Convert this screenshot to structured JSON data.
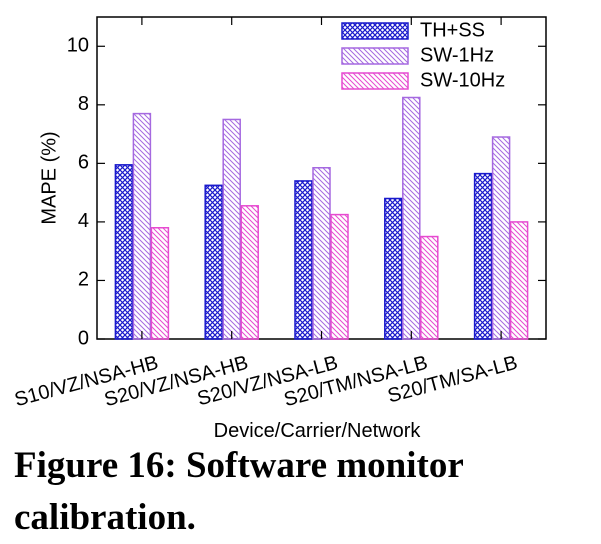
{
  "chart_data": {
    "type": "bar",
    "categories": [
      "S10/VZ/NSA-HB",
      "S20/VZ/NSA-HB",
      "S20/VZ/NSA-LB",
      "S20/TM/NSA-LB",
      "S20/TM/SA-LB"
    ],
    "series": [
      {
        "name": "TH+SS",
        "values": [
          5.95,
          5.25,
          5.4,
          4.8,
          5.65
        ],
        "color": "#1a1acc",
        "pattern": "crosshatch"
      },
      {
        "name": "SW-1Hz",
        "values": [
          7.7,
          7.5,
          5.85,
          8.25,
          6.9
        ],
        "color": "#a569e0",
        "pattern": "diagonal"
      },
      {
        "name": "SW-10Hz",
        "values": [
          3.8,
          4.55,
          4.25,
          3.5,
          4.0
        ],
        "color": "#e64ad0",
        "pattern": "diagonal"
      }
    ],
    "xlabel": "Device/Carrier/Network",
    "ylabel": "MAPE (%)",
    "ylim": [
      0,
      11
    ],
    "yticks": [
      "0",
      "2",
      "4",
      "6",
      "8",
      "10"
    ],
    "grid": false,
    "legend_position": "top-right"
  },
  "caption": {
    "line1": "Figure 16: Software monitor",
    "line2": "calibration."
  }
}
